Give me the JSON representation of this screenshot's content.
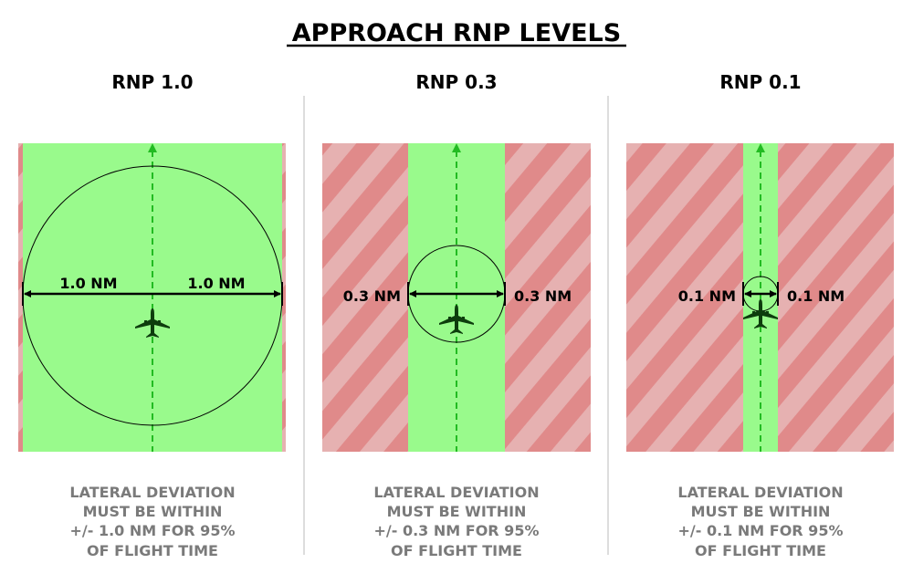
{
  "title": "APPROACH RNP LEVELS",
  "panels": [
    {
      "heading": "RNP 1.0",
      "left_label": "1.0 NM",
      "right_label": "1.0 NM",
      "caption": [
        "LATERAL DEVIATION",
        "MUST BE WITHIN",
        "+/- 1.0 NM FOR 95%",
        "OF FLIGHT TIME"
      ]
    },
    {
      "heading": "RNP 0.3",
      "left_label": "0.3 NM",
      "right_label": "0.3 NM",
      "caption": [
        "LATERAL DEVIATION",
        "MUST BE WITHIN",
        "+/- 0.3 NM FOR 95%",
        "OF FLIGHT TIME"
      ]
    },
    {
      "heading": "RNP 0.1",
      "left_label": "0.1 NM",
      "right_label": "0.1 NM",
      "caption": [
        "LATERAL DEVIATION",
        "MUST BE WITHIN",
        "+/- 0.1 NM FOR 95%",
        "OF FLIGHT TIME"
      ]
    }
  ],
  "colors": {
    "allowed": "#99fa8c",
    "stripe_light": "#e6b1b1",
    "stripe_dark": "#e08a8a",
    "track": "#22bb22",
    "aircraft": "#0d3d0d",
    "caption": "#7a7a7a"
  }
}
